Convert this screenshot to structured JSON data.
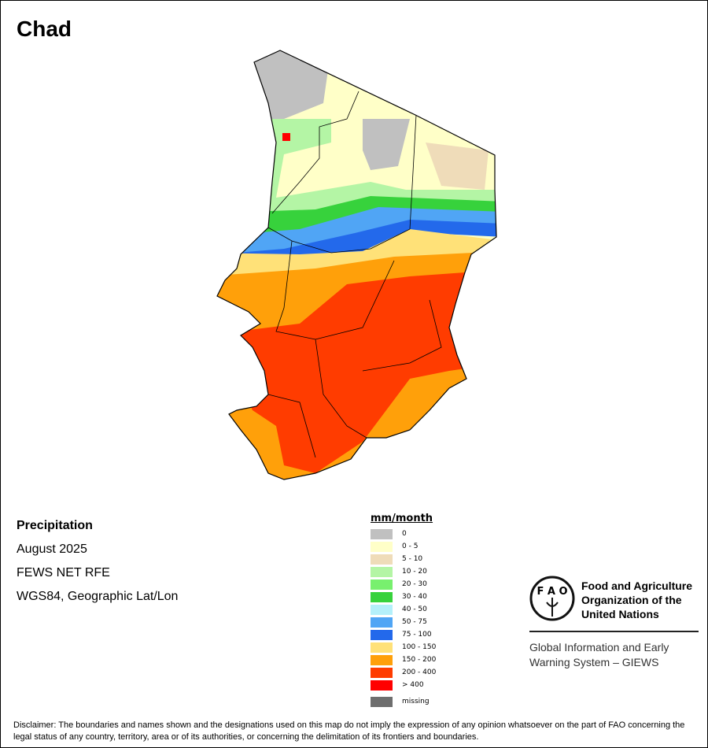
{
  "title": "Chad",
  "info": {
    "variable": "Precipitation",
    "period": "August 2025",
    "source": "FEWS NET RFE",
    "projection": "WGS84, Geographic Lat/Lon"
  },
  "legend": {
    "title": "mm/month",
    "items": [
      {
        "label": "0",
        "color": "#c0c0c0"
      },
      {
        "label": "0 - 5",
        "color": "#ffffc8"
      },
      {
        "label": "5 - 10",
        "color": "#efdcb9"
      },
      {
        "label": "10 - 20",
        "color": "#b4f5a5"
      },
      {
        "label": "20 - 30",
        "color": "#78f06e"
      },
      {
        "label": "30 - 40",
        "color": "#37d23c"
      },
      {
        "label": "40 - 50",
        "color": "#b4f0fa"
      },
      {
        "label": "50 - 75",
        "color": "#50a5f5"
      },
      {
        "label": "75 - 100",
        "color": "#2369eb"
      },
      {
        "label": "100 - 150",
        "color": "#ffe178"
      },
      {
        "label": "150 - 200",
        "color": "#ffa00a"
      },
      {
        "label": "200 - 400",
        "color": "#ff3c00"
      },
      {
        "label": "> 400",
        "color": "#ff0000"
      },
      {
        "label": "missing",
        "color": "#6e6e6e"
      }
    ]
  },
  "logo": {
    "name": "Food and Agriculture Organization of the United Nations",
    "emblem_letters": "FAO",
    "motto": "FIAT PANIS",
    "system": "Global Information and Early Warning System – GIEWS"
  },
  "disclaimer": "Disclaimer: The boundaries and names shown and the designations used on this map do not imply the expression of any opinion whatsoever on the part of FAO concerning the legal status of any country, territory, area or of its authorities, or concerning the delimitation of its frontiers and boundaries."
}
